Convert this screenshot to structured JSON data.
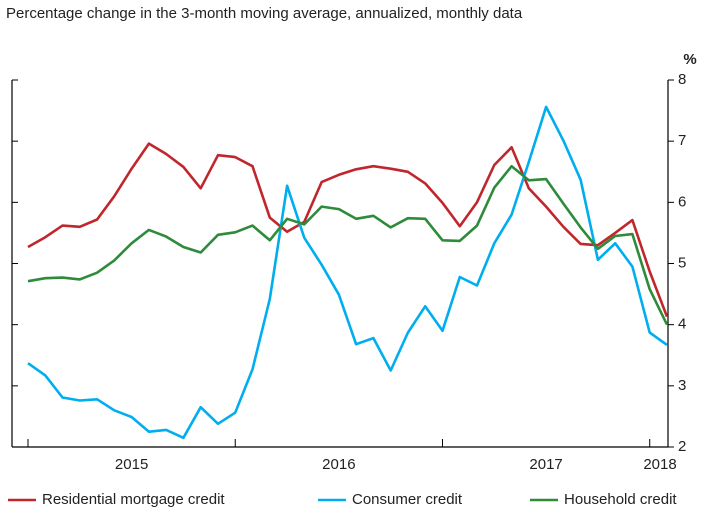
{
  "chart_data": {
    "type": "line",
    "title": "Percentage change in the 3-month moving average, annualized, monthly data",
    "y_label": "%",
    "categories": [
      null,
      null,
      null,
      null,
      null,
      null,
      "2015",
      null,
      null,
      null,
      null,
      null,
      null,
      null,
      null,
      null,
      null,
      null,
      "2016",
      null,
      null,
      null,
      null,
      null,
      null,
      null,
      null,
      null,
      null,
      null,
      "2017",
      null,
      null,
      null,
      null,
      null,
      null,
      "2018"
    ],
    "series": [
      {
        "name": "Residential mortgage credit",
        "color": "#c0272d",
        "values": [
          5.27,
          5.43,
          5.62,
          5.6,
          5.72,
          6.1,
          6.55,
          6.96,
          6.79,
          6.58,
          6.23,
          6.77,
          6.74,
          6.59,
          5.75,
          5.52,
          5.68,
          6.33,
          6.45,
          6.54,
          6.59,
          6.55,
          6.5,
          6.31,
          5.99,
          5.61,
          6.0,
          6.61,
          6.9,
          6.23,
          5.93,
          5.6,
          5.32,
          5.3,
          5.5,
          5.71,
          4.87,
          4.13
        ]
      },
      {
        "name": "Consumer credit",
        "color": "#00aeef",
        "values": [
          3.37,
          3.17,
          2.81,
          2.76,
          2.78,
          2.6,
          2.49,
          2.25,
          2.28,
          2.15,
          2.65,
          2.38,
          2.56,
          3.27,
          4.42,
          6.27,
          5.42,
          4.98,
          4.49,
          3.68,
          3.78,
          3.25,
          3.87,
          4.3,
          3.9,
          4.78,
          4.64,
          5.33,
          5.8,
          6.66,
          7.56,
          7.01,
          6.37,
          5.06,
          5.33,
          4.95,
          3.87,
          3.67
        ]
      },
      {
        "name": "Household credit",
        "color": "#2e8b3a",
        "values": [
          4.71,
          4.76,
          4.77,
          4.74,
          4.85,
          5.05,
          5.33,
          5.55,
          5.44,
          5.27,
          5.18,
          5.47,
          5.51,
          5.62,
          5.38,
          5.73,
          5.64,
          5.93,
          5.89,
          5.73,
          5.78,
          5.59,
          5.74,
          5.73,
          5.38,
          5.37,
          5.62,
          6.24,
          6.59,
          6.36,
          6.38,
          5.98,
          5.59,
          5.24,
          5.45,
          5.48,
          4.58,
          4.0
        ]
      }
    ],
    "ylim": [
      2,
      8
    ],
    "yticks": [
      2,
      3,
      4,
      5,
      6,
      7,
      8
    ],
    "y_axis_side": "right",
    "grid": false
  }
}
